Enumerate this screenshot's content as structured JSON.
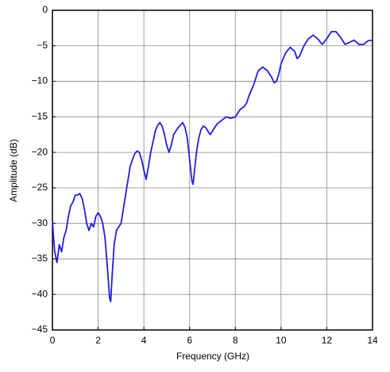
{
  "chart_data": {
    "type": "line",
    "x_label": "Frequency (GHz)",
    "y_label": "Amplitude (dB)",
    "x": [
      0,
      0.05,
      0.1,
      0.2,
      0.3,
      0.4,
      0.5,
      0.6,
      0.7,
      0.8,
      0.9,
      1.0,
      1.1,
      1.2,
      1.3,
      1.4,
      1.5,
      1.6,
      1.7,
      1.8,
      1.9,
      2.0,
      2.1,
      2.2,
      2.3,
      2.4,
      2.5,
      2.55,
      2.6,
      2.7,
      2.8,
      2.9,
      3.0,
      3.1,
      3.2,
      3.3,
      3.4,
      3.5,
      3.6,
      3.7,
      3.8,
      3.9,
      4.0,
      4.1,
      4.2,
      4.3,
      4.4,
      4.5,
      4.6,
      4.7,
      4.8,
      4.9,
      5.0,
      5.1,
      5.2,
      5.3,
      5.5,
      5.7,
      5.8,
      5.9,
      6.0,
      6.1,
      6.15,
      6.2,
      6.3,
      6.4,
      6.5,
      6.6,
      6.7,
      6.8,
      6.9,
      7.0,
      7.2,
      7.4,
      7.6,
      7.8,
      8.0,
      8.1,
      8.2,
      8.4,
      8.5,
      8.6,
      8.8,
      9.0,
      9.2,
      9.4,
      9.6,
      9.7,
      9.8,
      9.9,
      10.0,
      10.2,
      10.4,
      10.6,
      10.7,
      10.8,
      11.0,
      11.2,
      11.4,
      11.6,
      11.8,
      12.0,
      12.2,
      12.4,
      12.6,
      12.8,
      13.0,
      13.2,
      13.4,
      13.6,
      13.8,
      14.0
    ],
    "values": [
      -29.5,
      -32,
      -34,
      -35.5,
      -33,
      -34,
      -32,
      -31,
      -29,
      -27.5,
      -27,
      -26,
      -26,
      -25.8,
      -26.5,
      -28,
      -30,
      -31,
      -30,
      -30.5,
      -29,
      -28.5,
      -29,
      -30,
      -32,
      -36,
      -40.5,
      -41,
      -38,
      -33,
      -31,
      -30.5,
      -30,
      -28,
      -26,
      -24,
      -22,
      -21,
      -20.2,
      -19.8,
      -20,
      -21,
      -22.5,
      -23.8,
      -22,
      -20,
      -18.5,
      -17,
      -16.2,
      -15.8,
      -16.3,
      -17.5,
      -19,
      -20,
      -19,
      -17.5,
      -16.5,
      -15.8,
      -16.5,
      -18,
      -21,
      -24,
      -24.5,
      -23,
      -20,
      -18,
      -16.8,
      -16.3,
      -16.5,
      -17,
      -17.5,
      -17,
      -16,
      -15.5,
      -15,
      -15.2,
      -15,
      -14.5,
      -14,
      -13.5,
      -13,
      -12,
      -10.5,
      -8.5,
      -8,
      -8.5,
      -9.5,
      -10.2,
      -10,
      -9,
      -7.5,
      -6,
      -5.2,
      -5.8,
      -6.8,
      -6.5,
      -5,
      -4,
      -3.5,
      -4,
      -4.8,
      -4,
      -3,
      -3,
      -3.8,
      -4.8,
      -4.5,
      -4.2,
      -4.8,
      -4.8,
      -4.3,
      -4.2
    ],
    "color": "#1f1fe6",
    "xlim": [
      0,
      14
    ],
    "xticks": [
      0,
      2,
      4,
      6,
      8,
      10,
      12,
      14
    ],
    "ylim": [
      -45,
      0
    ],
    "yticks": [
      {
        "value": -45,
        "label": "−45"
      },
      {
        "value": -40,
        "label": "−40"
      },
      {
        "value": -35,
        "label": "−35"
      },
      {
        "value": -30,
        "label": "−30"
      },
      {
        "value": -25,
        "label": "−25"
      },
      {
        "value": -20,
        "label": "−20"
      },
      {
        "value": -15,
        "label": "−15"
      },
      {
        "value": -10,
        "label": "−10"
      },
      {
        "value": -5,
        "label": "−5"
      },
      0
    ],
    "grid": true
  }
}
